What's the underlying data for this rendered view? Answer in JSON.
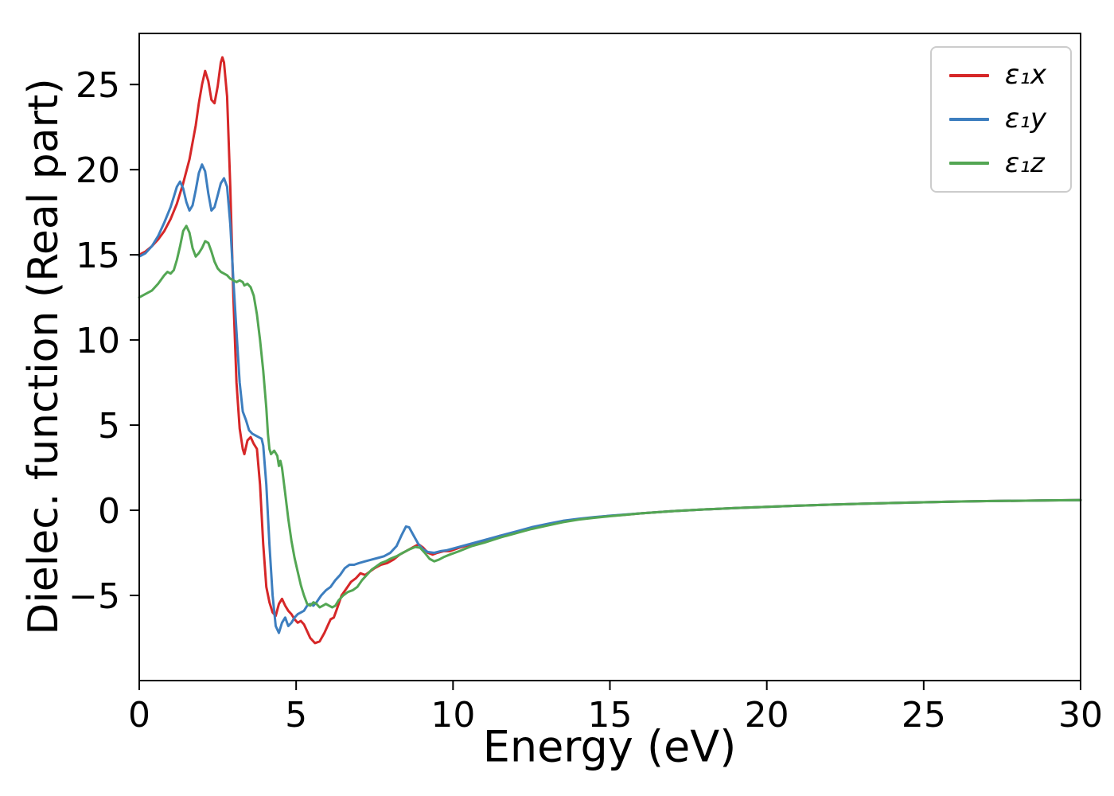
{
  "chart_data": {
    "type": "line",
    "title": "",
    "xlabel": "Energy (eV)",
    "ylabel": "Dielec. function (Real part)",
    "xlim": [
      0,
      30
    ],
    "ylim": [
      -10,
      28
    ],
    "xticks": [
      0,
      5,
      10,
      15,
      20,
      25,
      30
    ],
    "yticks": [
      -5,
      0,
      5,
      10,
      15,
      20,
      25
    ],
    "grid": false,
    "legend_position": "upper right",
    "series": [
      {
        "name": "ε₁x",
        "color": "#d62728",
        "points": [
          [
            0,
            15.0
          ],
          [
            0.2,
            15.2
          ],
          [
            0.4,
            15.5
          ],
          [
            0.6,
            15.9
          ],
          [
            0.8,
            16.4
          ],
          [
            1.0,
            17.1
          ],
          [
            1.2,
            18.0
          ],
          [
            1.4,
            19.2
          ],
          [
            1.6,
            20.6
          ],
          [
            1.8,
            22.6
          ],
          [
            1.9,
            23.9
          ],
          [
            2.0,
            25.0
          ],
          [
            2.1,
            25.8
          ],
          [
            2.2,
            25.2
          ],
          [
            2.3,
            24.1
          ],
          [
            2.4,
            23.9
          ],
          [
            2.5,
            24.9
          ],
          [
            2.6,
            26.3
          ],
          [
            2.65,
            26.6
          ],
          [
            2.7,
            26.3
          ],
          [
            2.8,
            24.3
          ],
          [
            2.9,
            19.0
          ],
          [
            3.0,
            12.5
          ],
          [
            3.1,
            7.5
          ],
          [
            3.2,
            4.8
          ],
          [
            3.3,
            3.6
          ],
          [
            3.35,
            3.3
          ],
          [
            3.45,
            4.1
          ],
          [
            3.55,
            4.3
          ],
          [
            3.65,
            3.9
          ],
          [
            3.75,
            3.6
          ],
          [
            3.85,
            1.5
          ],
          [
            3.95,
            -2.0
          ],
          [
            4.05,
            -4.5
          ],
          [
            4.15,
            -5.4
          ],
          [
            4.25,
            -6.0
          ],
          [
            4.35,
            -6.2
          ],
          [
            4.45,
            -5.5
          ],
          [
            4.55,
            -5.2
          ],
          [
            4.65,
            -5.6
          ],
          [
            4.75,
            -5.9
          ],
          [
            4.85,
            -6.1
          ],
          [
            4.95,
            -6.4
          ],
          [
            5.05,
            -6.6
          ],
          [
            5.15,
            -6.5
          ],
          [
            5.25,
            -6.7
          ],
          [
            5.35,
            -7.1
          ],
          [
            5.45,
            -7.5
          ],
          [
            5.6,
            -7.8
          ],
          [
            5.75,
            -7.7
          ],
          [
            5.9,
            -7.2
          ],
          [
            6.0,
            -6.8
          ],
          [
            6.1,
            -6.4
          ],
          [
            6.2,
            -6.3
          ],
          [
            6.3,
            -5.8
          ],
          [
            6.45,
            -5.0
          ],
          [
            6.6,
            -4.6
          ],
          [
            6.75,
            -4.2
          ],
          [
            6.9,
            -4.0
          ],
          [
            7.05,
            -3.7
          ],
          [
            7.2,
            -3.8
          ],
          [
            7.35,
            -3.6
          ],
          [
            7.5,
            -3.4
          ],
          [
            7.7,
            -3.2
          ],
          [
            7.9,
            -3.1
          ],
          [
            8.1,
            -2.9
          ],
          [
            8.3,
            -2.6
          ],
          [
            8.5,
            -2.4
          ],
          [
            8.7,
            -2.2
          ],
          [
            8.9,
            -2.0
          ],
          [
            9.05,
            -2.2
          ],
          [
            9.2,
            -2.5
          ],
          [
            9.35,
            -2.6
          ],
          [
            9.5,
            -2.5
          ],
          [
            9.7,
            -2.4
          ],
          [
            9.9,
            -2.4
          ],
          [
            10.2,
            -2.2
          ],
          [
            10.6,
            -2.0
          ],
          [
            11.0,
            -1.8
          ],
          [
            11.5,
            -1.5
          ],
          [
            12.0,
            -1.3
          ],
          [
            12.5,
            -1.05
          ],
          [
            13.0,
            -0.85
          ],
          [
            13.5,
            -0.65
          ],
          [
            14.0,
            -0.52
          ],
          [
            14.5,
            -0.42
          ],
          [
            15.0,
            -0.33
          ],
          [
            15.5,
            -0.26
          ],
          [
            16,
            -0.18
          ],
          [
            17,
            -0.05
          ],
          [
            18,
            0.05
          ],
          [
            19,
            0.13
          ],
          [
            20,
            0.2
          ],
          [
            21,
            0.27
          ],
          [
            22,
            0.33
          ],
          [
            23,
            0.38
          ],
          [
            24,
            0.43
          ],
          [
            25,
            0.47
          ],
          [
            26,
            0.51
          ],
          [
            27,
            0.54
          ],
          [
            28,
            0.56
          ],
          [
            29,
            0.58
          ],
          [
            30,
            0.6
          ]
        ]
      },
      {
        "name": "ε₁y",
        "color": "#3d7ebf",
        "points": [
          [
            0,
            14.9
          ],
          [
            0.2,
            15.1
          ],
          [
            0.4,
            15.5
          ],
          [
            0.6,
            16.1
          ],
          [
            0.8,
            16.9
          ],
          [
            1.0,
            17.8
          ],
          [
            1.1,
            18.4
          ],
          [
            1.2,
            19.0
          ],
          [
            1.3,
            19.3
          ],
          [
            1.4,
            18.9
          ],
          [
            1.5,
            18.1
          ],
          [
            1.6,
            17.6
          ],
          [
            1.7,
            17.9
          ],
          [
            1.8,
            18.8
          ],
          [
            1.9,
            19.8
          ],
          [
            2.0,
            20.3
          ],
          [
            2.1,
            19.9
          ],
          [
            2.2,
            18.6
          ],
          [
            2.3,
            17.6
          ],
          [
            2.4,
            17.8
          ],
          [
            2.5,
            18.5
          ],
          [
            2.6,
            19.2
          ],
          [
            2.7,
            19.5
          ],
          [
            2.8,
            19.0
          ],
          [
            2.9,
            16.8
          ],
          [
            3.0,
            13.5
          ],
          [
            3.1,
            10.5
          ],
          [
            3.2,
            7.5
          ],
          [
            3.3,
            5.8
          ],
          [
            3.4,
            5.3
          ],
          [
            3.5,
            4.7
          ],
          [
            3.6,
            4.5
          ],
          [
            3.7,
            4.4
          ],
          [
            3.8,
            4.3
          ],
          [
            3.9,
            4.2
          ],
          [
            3.95,
            3.8
          ],
          [
            4.05,
            1.5
          ],
          [
            4.15,
            -2.0
          ],
          [
            4.25,
            -5.0
          ],
          [
            4.35,
            -6.8
          ],
          [
            4.45,
            -7.2
          ],
          [
            4.55,
            -6.6
          ],
          [
            4.65,
            -6.3
          ],
          [
            4.75,
            -6.8
          ],
          [
            4.85,
            -6.6
          ],
          [
            4.95,
            -6.3
          ],
          [
            5.05,
            -6.1
          ],
          [
            5.15,
            -6.0
          ],
          [
            5.25,
            -5.9
          ],
          [
            5.35,
            -5.6
          ],
          [
            5.45,
            -5.5
          ],
          [
            5.55,
            -5.6
          ],
          [
            5.65,
            -5.4
          ],
          [
            5.8,
            -5.0
          ],
          [
            5.95,
            -4.7
          ],
          [
            6.1,
            -4.5
          ],
          [
            6.25,
            -4.1
          ],
          [
            6.4,
            -3.8
          ],
          [
            6.55,
            -3.4
          ],
          [
            6.7,
            -3.2
          ],
          [
            6.85,
            -3.2
          ],
          [
            7.0,
            -3.1
          ],
          [
            7.2,
            -3.0
          ],
          [
            7.4,
            -2.9
          ],
          [
            7.6,
            -2.8
          ],
          [
            7.8,
            -2.7
          ],
          [
            8.0,
            -2.5
          ],
          [
            8.2,
            -2.1
          ],
          [
            8.35,
            -1.5
          ],
          [
            8.5,
            -0.95
          ],
          [
            8.6,
            -1.0
          ],
          [
            8.75,
            -1.5
          ],
          [
            8.9,
            -2.0
          ],
          [
            9.05,
            -2.3
          ],
          [
            9.2,
            -2.45
          ],
          [
            9.4,
            -2.5
          ],
          [
            9.6,
            -2.4
          ],
          [
            9.8,
            -2.35
          ],
          [
            10.1,
            -2.2
          ],
          [
            10.5,
            -2.0
          ],
          [
            11.0,
            -1.75
          ],
          [
            11.5,
            -1.5
          ],
          [
            12.0,
            -1.25
          ],
          [
            12.5,
            -1.0
          ],
          [
            13.0,
            -0.8
          ],
          [
            13.5,
            -0.62
          ],
          [
            14.0,
            -0.5
          ],
          [
            14.5,
            -0.4
          ],
          [
            15.0,
            -0.32
          ],
          [
            15.5,
            -0.25
          ],
          [
            16,
            -0.18
          ],
          [
            17,
            -0.05
          ],
          [
            18,
            0.05
          ],
          [
            19,
            0.13
          ],
          [
            20,
            0.2
          ],
          [
            21,
            0.27
          ],
          [
            22,
            0.33
          ],
          [
            23,
            0.38
          ],
          [
            24,
            0.43
          ],
          [
            25,
            0.47
          ],
          [
            26,
            0.51
          ],
          [
            27,
            0.54
          ],
          [
            28,
            0.56
          ],
          [
            29,
            0.58
          ],
          [
            30,
            0.6
          ]
        ]
      },
      {
        "name": "ε₁z",
        "color": "#53a653",
        "points": [
          [
            0,
            12.5
          ],
          [
            0.2,
            12.7
          ],
          [
            0.4,
            12.9
          ],
          [
            0.6,
            13.3
          ],
          [
            0.8,
            13.8
          ],
          [
            0.9,
            14.0
          ],
          [
            1.0,
            13.9
          ],
          [
            1.1,
            14.1
          ],
          [
            1.2,
            14.7
          ],
          [
            1.3,
            15.5
          ],
          [
            1.4,
            16.4
          ],
          [
            1.5,
            16.7
          ],
          [
            1.6,
            16.3
          ],
          [
            1.7,
            15.4
          ],
          [
            1.8,
            14.9
          ],
          [
            1.9,
            15.1
          ],
          [
            2.0,
            15.4
          ],
          [
            2.1,
            15.8
          ],
          [
            2.2,
            15.7
          ],
          [
            2.3,
            15.2
          ],
          [
            2.4,
            14.6
          ],
          [
            2.5,
            14.2
          ],
          [
            2.6,
            14.0
          ],
          [
            2.7,
            13.9
          ],
          [
            2.8,
            13.8
          ],
          [
            2.9,
            13.6
          ],
          [
            3.0,
            13.5
          ],
          [
            3.1,
            13.4
          ],
          [
            3.2,
            13.5
          ],
          [
            3.3,
            13.4
          ],
          [
            3.35,
            13.2
          ],
          [
            3.45,
            13.3
          ],
          [
            3.55,
            13.1
          ],
          [
            3.65,
            12.6
          ],
          [
            3.75,
            11.5
          ],
          [
            3.85,
            10.0
          ],
          [
            3.95,
            8.2
          ],
          [
            4.05,
            6.0
          ],
          [
            4.1,
            4.5
          ],
          [
            4.15,
            3.6
          ],
          [
            4.2,
            3.3
          ],
          [
            4.3,
            3.5
          ],
          [
            4.4,
            3.2
          ],
          [
            4.45,
            2.6
          ],
          [
            4.5,
            2.9
          ],
          [
            4.55,
            2.5
          ],
          [
            4.65,
            1.0
          ],
          [
            4.75,
            -0.5
          ],
          [
            4.85,
            -1.8
          ],
          [
            4.95,
            -2.8
          ],
          [
            5.05,
            -3.6
          ],
          [
            5.15,
            -4.4
          ],
          [
            5.25,
            -5.0
          ],
          [
            5.35,
            -5.5
          ],
          [
            5.45,
            -5.6
          ],
          [
            5.55,
            -5.4
          ],
          [
            5.65,
            -5.5
          ],
          [
            5.75,
            -5.7
          ],
          [
            5.85,
            -5.6
          ],
          [
            5.95,
            -5.5
          ],
          [
            6.05,
            -5.6
          ],
          [
            6.15,
            -5.7
          ],
          [
            6.25,
            -5.6
          ],
          [
            6.35,
            -5.3
          ],
          [
            6.5,
            -5.0
          ],
          [
            6.65,
            -4.8
          ],
          [
            6.8,
            -4.7
          ],
          [
            6.95,
            -4.5
          ],
          [
            7.1,
            -4.1
          ],
          [
            7.25,
            -3.8
          ],
          [
            7.4,
            -3.5
          ],
          [
            7.55,
            -3.3
          ],
          [
            7.7,
            -3.1
          ],
          [
            7.85,
            -3.0
          ],
          [
            8.0,
            -2.85
          ],
          [
            8.2,
            -2.7
          ],
          [
            8.4,
            -2.5
          ],
          [
            8.6,
            -2.3
          ],
          [
            8.8,
            -2.15
          ],
          [
            8.95,
            -2.2
          ],
          [
            9.1,
            -2.5
          ],
          [
            9.25,
            -2.85
          ],
          [
            9.4,
            -3.0
          ],
          [
            9.55,
            -2.9
          ],
          [
            9.7,
            -2.75
          ],
          [
            9.9,
            -2.6
          ],
          [
            10.2,
            -2.4
          ],
          [
            10.6,
            -2.1
          ],
          [
            11.0,
            -1.9
          ],
          [
            11.5,
            -1.6
          ],
          [
            12.0,
            -1.35
          ],
          [
            12.5,
            -1.1
          ],
          [
            13.0,
            -0.9
          ],
          [
            13.5,
            -0.7
          ],
          [
            14.0,
            -0.55
          ],
          [
            14.5,
            -0.44
          ],
          [
            15.0,
            -0.35
          ],
          [
            15.5,
            -0.27
          ],
          [
            16,
            -0.18
          ],
          [
            17,
            -0.05
          ],
          [
            18,
            0.05
          ],
          [
            19,
            0.13
          ],
          [
            20,
            0.2
          ],
          [
            21,
            0.27
          ],
          [
            22,
            0.33
          ],
          [
            23,
            0.38
          ],
          [
            24,
            0.43
          ],
          [
            25,
            0.47
          ],
          [
            26,
            0.51
          ],
          [
            27,
            0.54
          ],
          [
            28,
            0.56
          ],
          [
            29,
            0.58
          ],
          [
            30,
            0.6
          ]
        ]
      }
    ]
  }
}
